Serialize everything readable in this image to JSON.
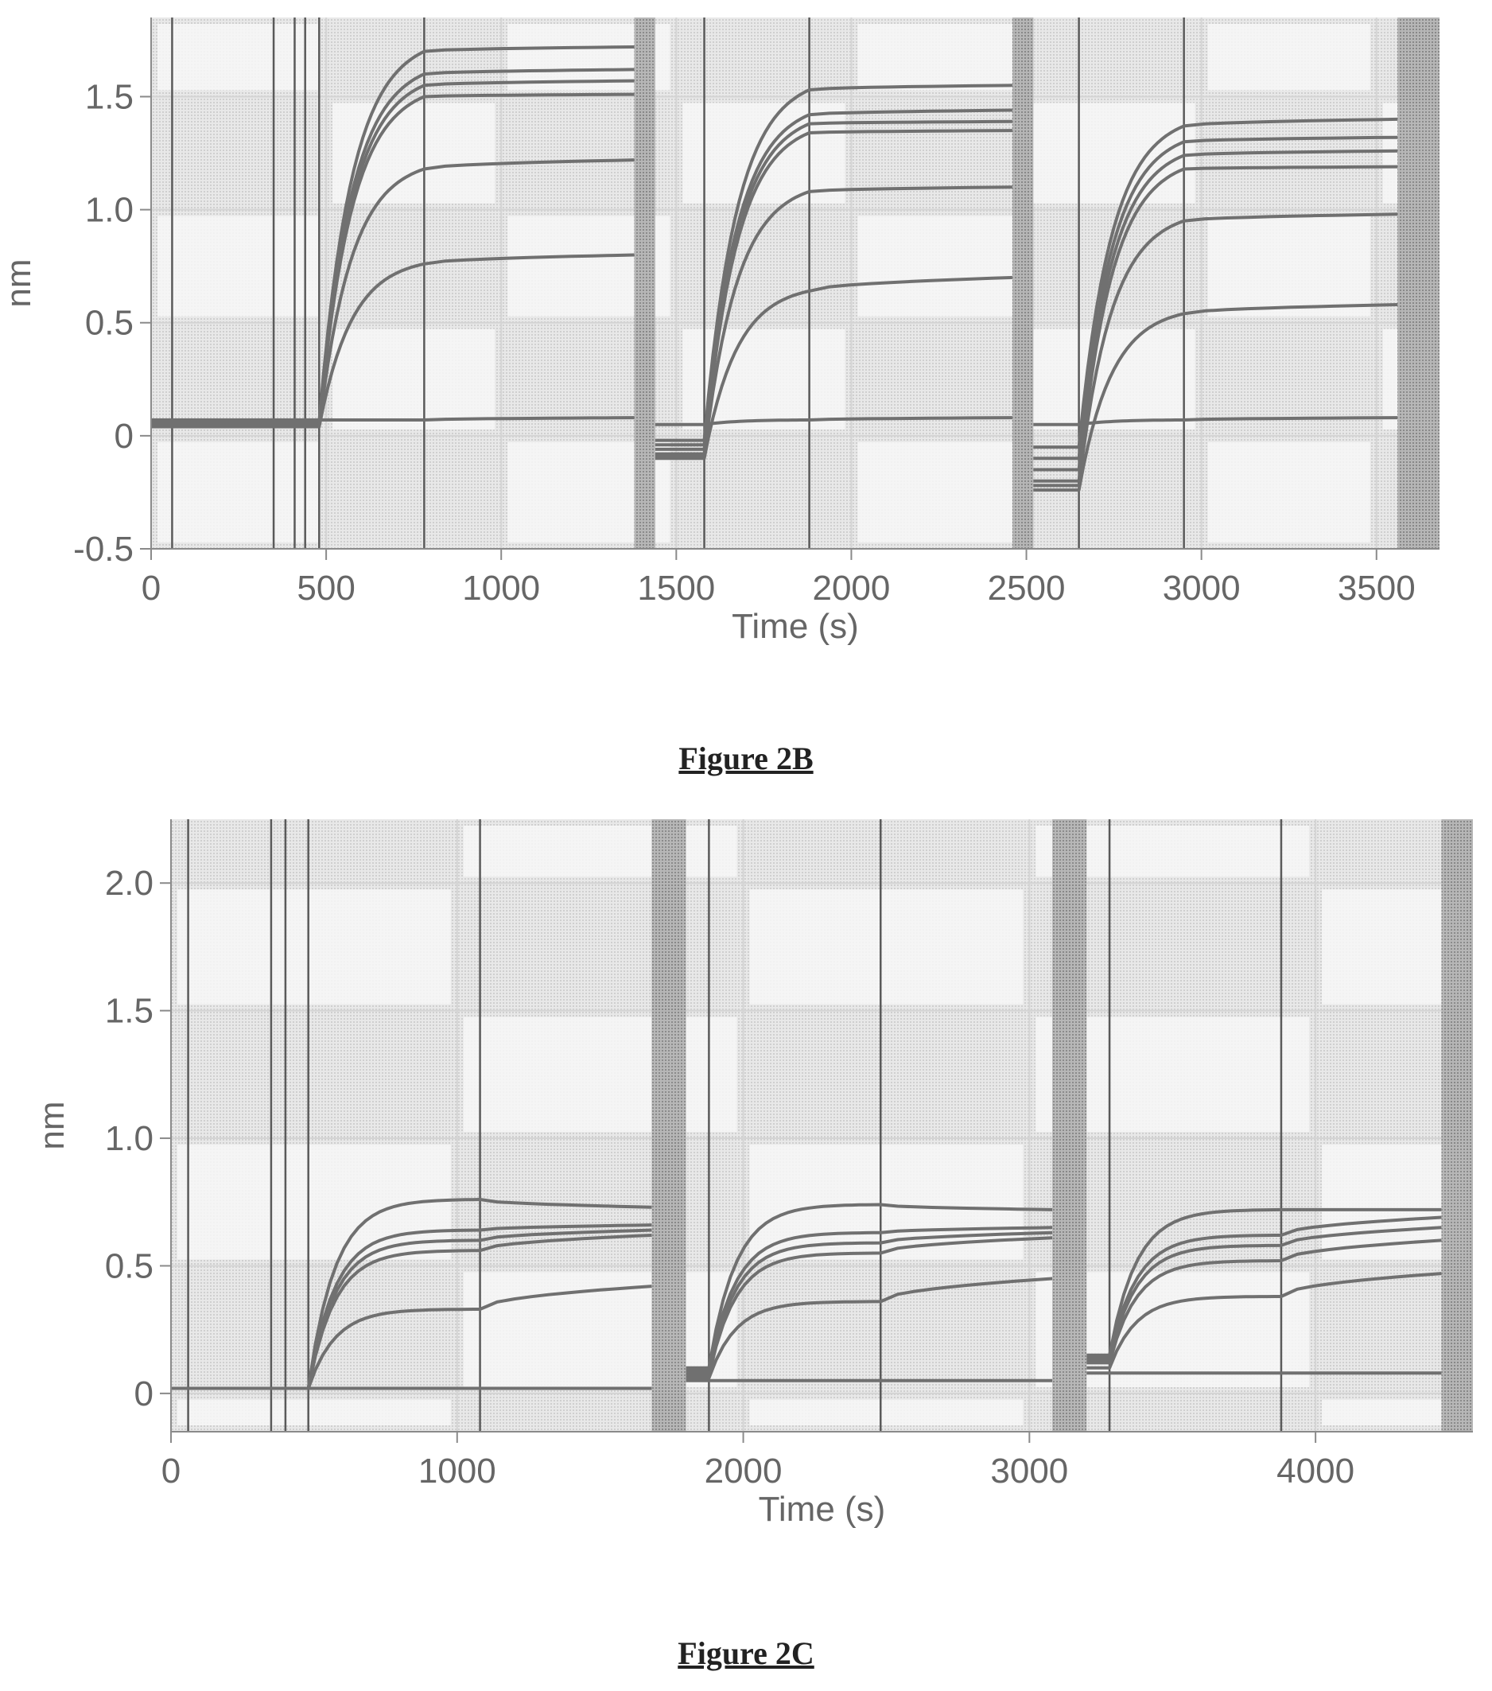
{
  "colors": {
    "plot_bg": "#e4e4e4",
    "grid_cell": "#f7f7f7",
    "trace": "#707070",
    "event_line": "#5a5a5a",
    "regen_band": "#9a9a9a",
    "axis_text": "#666666"
  },
  "figures": [
    {
      "caption": "Figure 2B",
      "chart_data": {
        "type": "line",
        "title": "",
        "xlabel": "Time (s)",
        "ylabel": "nm",
        "xlim": [
          0,
          3680
        ],
        "ylim": [
          -0.5,
          1.85
        ],
        "xticks": [
          0,
          500,
          1000,
          1500,
          2000,
          2500,
          3000,
          3500
        ],
        "xtick_labels": [
          "0",
          "500",
          "1000",
          "1500",
          "2000",
          "2500",
          "3000",
          "3500"
        ],
        "yticks": [
          -0.5,
          0,
          0.5,
          1.0,
          1.5
        ],
        "ytick_labels": [
          "-0.5",
          "0",
          "0.5",
          "1.0",
          "1.5"
        ],
        "grid": true,
        "event_lines": [
          60,
          350,
          410,
          440,
          480,
          780,
          1580,
          1880,
          2650,
          2950
        ],
        "regeneration_bands": [
          [
            1380,
            1440
          ],
          [
            2460,
            2520
          ],
          [
            3560,
            3680
          ]
        ],
        "cycles": [
          {
            "baseline_start": 0,
            "association_start": 480,
            "association_end": 780,
            "dissociation_end": 1380
          },
          {
            "baseline_start": 1440,
            "association_start": 1580,
            "association_end": 1880,
            "dissociation_end": 2460
          },
          {
            "baseline_start": 2520,
            "association_start": 2650,
            "association_end": 2950,
            "dissociation_end": 3560
          }
        ],
        "series": [
          {
            "association_plateau": [
              1.7,
              1.53,
              1.37
            ],
            "dissociation_end": [
              1.72,
              1.55,
              1.4
            ],
            "cycle_start": [
              0.06,
              -0.02,
              -0.05
            ]
          },
          {
            "association_plateau": [
              1.6,
              1.42,
              1.3
            ],
            "dissociation_end": [
              1.62,
              1.44,
              1.32
            ],
            "cycle_start": [
              0.06,
              -0.04,
              -0.1
            ]
          },
          {
            "association_plateau": [
              1.55,
              1.38,
              1.24
            ],
            "dissociation_end": [
              1.57,
              1.39,
              1.26
            ],
            "cycle_start": [
              0.05,
              -0.06,
              -0.15
            ]
          },
          {
            "association_plateau": [
              1.5,
              1.34,
              1.18
            ],
            "dissociation_end": [
              1.51,
              1.35,
              1.19
            ],
            "cycle_start": [
              0.05,
              -0.08,
              -0.2
            ]
          },
          {
            "association_plateau": [
              1.18,
              1.08,
              0.95
            ],
            "dissociation_end": [
              1.22,
              1.1,
              0.98
            ],
            "cycle_start": [
              0.04,
              -0.09,
              -0.22
            ]
          },
          {
            "association_plateau": [
              0.76,
              0.64,
              0.54
            ],
            "dissociation_end": [
              0.8,
              0.7,
              0.58
            ],
            "cycle_start": [
              0.04,
              -0.1,
              -0.24
            ]
          },
          {
            "association_plateau": [
              0.07,
              0.07,
              0.07
            ],
            "dissociation_end": [
              0.08,
              0.08,
              0.08
            ],
            "cycle_start": [
              0.07,
              0.05,
              0.05
            ]
          }
        ]
      }
    },
    {
      "caption": "Figure 2C",
      "chart_data": {
        "type": "line",
        "title": "",
        "xlabel": "Time (s)",
        "ylabel": "nm",
        "xlim": [
          0,
          4550
        ],
        "ylim": [
          -0.15,
          2.25
        ],
        "xticks": [
          0,
          1000,
          2000,
          3000,
          4000
        ],
        "xtick_labels": [
          "0",
          "1000",
          "2000",
          "3000",
          "4000"
        ],
        "yticks": [
          0,
          0.5,
          1.0,
          1.5,
          2.0
        ],
        "ytick_labels": [
          "0",
          "0.5",
          "1.0",
          "1.5",
          "2.0"
        ],
        "grid": true,
        "event_lines": [
          60,
          350,
          400,
          480,
          1080,
          1880,
          2480,
          3280,
          3880
        ],
        "regeneration_bands": [
          [
            1680,
            1800
          ],
          [
            3080,
            3200
          ],
          [
            4440,
            4550
          ]
        ],
        "cycles": [
          {
            "baseline_start": 0,
            "association_start": 480,
            "association_end": 1080,
            "dissociation_end": 1680
          },
          {
            "baseline_start": 1800,
            "association_start": 1880,
            "association_end": 2480,
            "dissociation_end": 3080
          },
          {
            "baseline_start": 3200,
            "association_start": 3280,
            "association_end": 3880,
            "dissociation_end": 4440
          }
        ],
        "series": [
          {
            "association_plateau": [
              0.76,
              0.74,
              0.72
            ],
            "dissociation_end": [
              0.73,
              0.72,
              0.72
            ],
            "cycle_start": [
              0.02,
              0.1,
              0.15
            ]
          },
          {
            "association_plateau": [
              0.64,
              0.63,
              0.62
            ],
            "dissociation_end": [
              0.66,
              0.65,
              0.69
            ],
            "cycle_start": [
              0.02,
              0.09,
              0.14
            ]
          },
          {
            "association_plateau": [
              0.6,
              0.59,
              0.58
            ],
            "dissociation_end": [
              0.64,
              0.63,
              0.65
            ],
            "cycle_start": [
              0.02,
              0.08,
              0.13
            ]
          },
          {
            "association_plateau": [
              0.56,
              0.55,
              0.52
            ],
            "dissociation_end": [
              0.62,
              0.61,
              0.6
            ],
            "cycle_start": [
              0.02,
              0.07,
              0.12
            ]
          },
          {
            "association_plateau": [
              0.33,
              0.36,
              0.38
            ],
            "dissociation_end": [
              0.42,
              0.45,
              0.47
            ],
            "cycle_start": [
              0.02,
              0.06,
              0.1
            ]
          },
          {
            "association_plateau": [
              0.02,
              0.05,
              0.08
            ],
            "dissociation_end": [
              0.02,
              0.05,
              0.08
            ],
            "cycle_start": [
              0.02,
              0.05,
              0.08
            ]
          }
        ]
      }
    }
  ]
}
